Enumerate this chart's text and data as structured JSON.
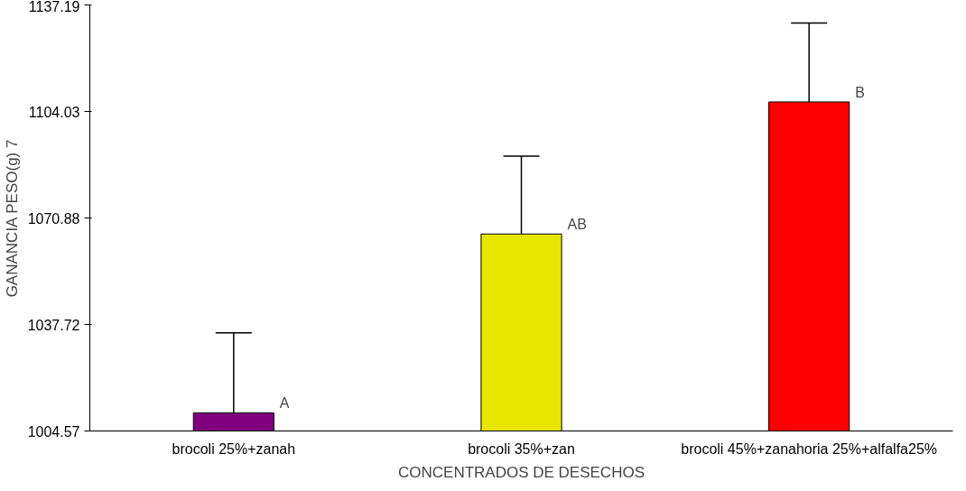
{
  "chart_data": {
    "type": "bar",
    "xlabel": "CONCENTRADOS DE DESECHOS",
    "ylabel": "GANANCIA PESO(g) 7",
    "categories": [
      "brocoli 25%+zanah",
      "brocoli 35%+zan",
      "brocoli 45%+zanahoria 25%+alfalfa25%"
    ],
    "values": [
      1010.2,
      1065.9,
      1107.0
    ],
    "colors": [
      "#800080",
      "#e6e600",
      "#ff0000"
    ],
    "errors": [
      [
        1010.2,
        1035.1
      ],
      [
        1065.9,
        1090.1
      ],
      [
        1107.0,
        1131.6
      ]
    ],
    "annotations": [
      "A",
      "AB",
      "B"
    ],
    "ylim": [
      1004.57,
      1137.19
    ],
    "yticks": [
      1004.57,
      1037.72,
      1070.88,
      1104.03,
      1137.19
    ],
    "grid": false
  }
}
